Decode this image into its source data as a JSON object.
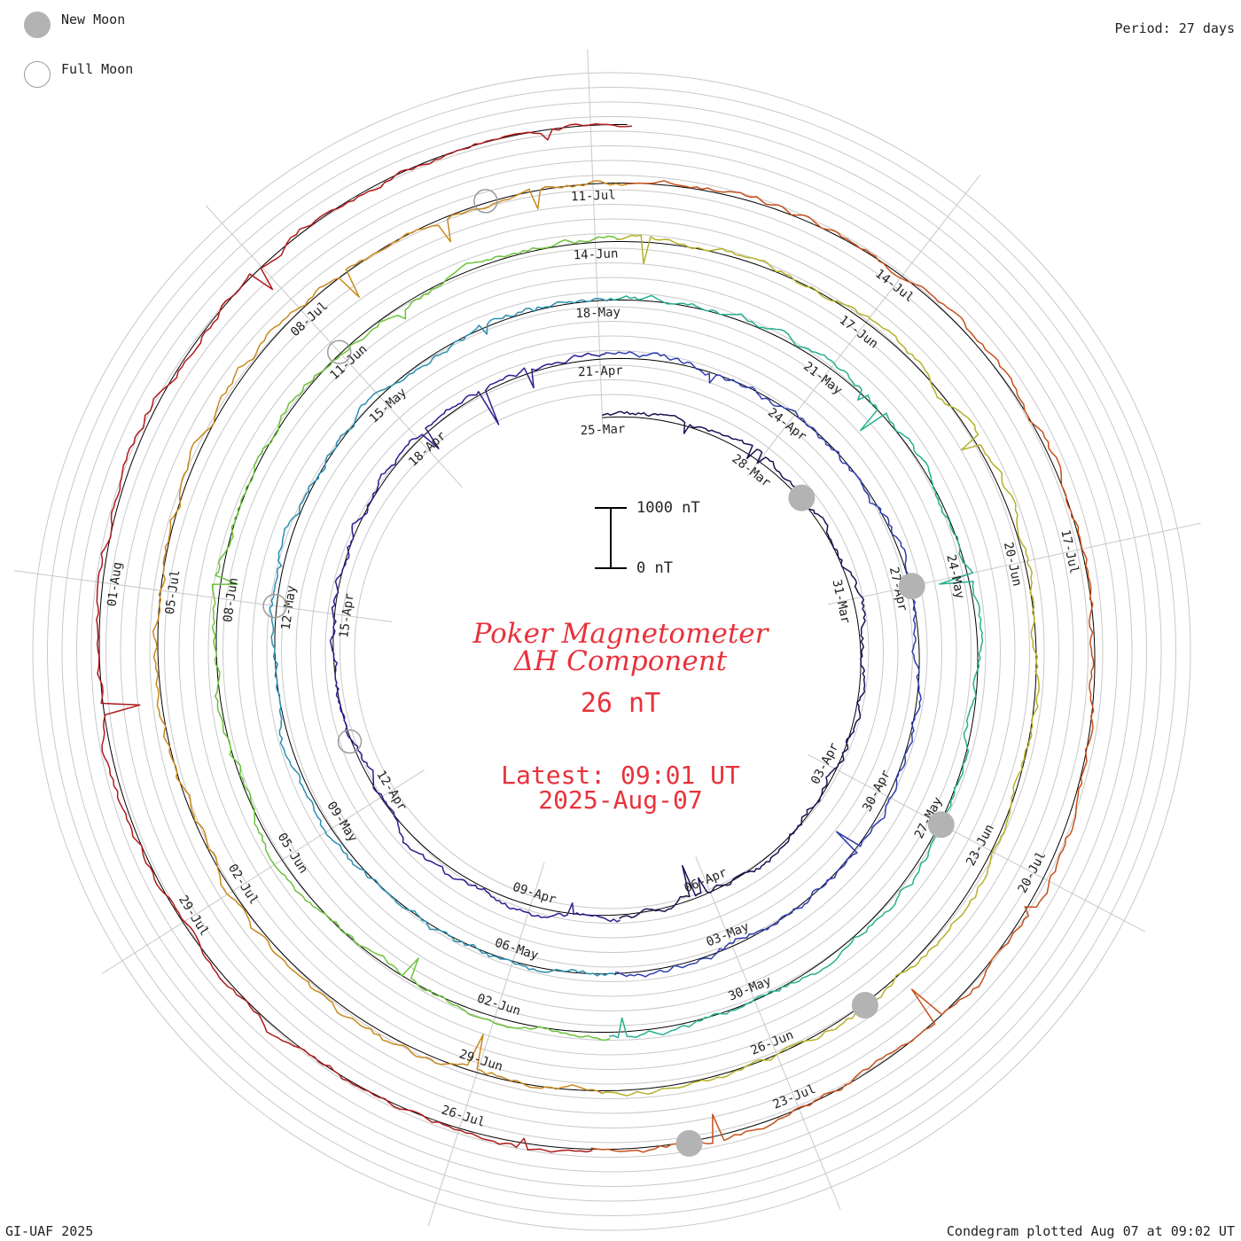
{
  "legend": {
    "new_moon_label": "New Moon",
    "full_moon_label": "Full Moon"
  },
  "period_label": "Period: 27 days",
  "footer": {
    "left": "GI-UAF 2025",
    "right": "Condegram plotted Aug 07 at 09:02 UT"
  },
  "title": {
    "line1": "Poker Magnetometer",
    "line2": "ΔH Component",
    "value": "26 nT",
    "latest_line1": "Latest: 09:01 UT",
    "latest_line2": "2025-Aug-07"
  },
  "scale_bar": {
    "top_label": "1000 nT",
    "bottom_label": "0 nT"
  },
  "colors": {
    "new_moon": "#b3b3b3",
    "full_moon_outline": "#9a9a9a",
    "title": "#e8323c",
    "grid": "#c8c8c8",
    "baseline": "#000000"
  },
  "chart_data": {
    "type": "line",
    "layout": "spiral condegram",
    "period_days": 27,
    "start_date": "2025-03-25",
    "end_date": "2025-08-07",
    "date_labels": [
      "25-Mar",
      "28-Mar",
      "31-Mar",
      "03-Apr",
      "06-Apr",
      "09-Apr",
      "12-Apr",
      "15-Apr",
      "18-Apr",
      "21-Apr",
      "24-Apr",
      "27-Apr",
      "30-Apr",
      "03-May",
      "06-May",
      "09-May",
      "12-May",
      "15-May",
      "18-May",
      "21-May",
      "24-May",
      "27-May",
      "30-May",
      "02-Jun",
      "05-Jun",
      "08-Jun",
      "11-Jun",
      "14-Jun",
      "17-Jun",
      "20-Jun",
      "23-Jun",
      "26-Jun",
      "29-Jun",
      "02-Jul",
      "05-Jul",
      "08-Jul",
      "11-Jul",
      "14-Jul",
      "17-Jul",
      "20-Jul",
      "23-Jul",
      "26-Jul",
      "29-Jul",
      "01-Aug"
    ],
    "series_colors": [
      "#1a1050",
      "#2a1f8f",
      "#2f3db0",
      "#2a8fb0",
      "#25b08e",
      "#6cc23a",
      "#b4b028",
      "#c8891c",
      "#c5501a",
      "#b01a1a"
    ],
    "new_moons": [
      "2025-03-29",
      "2025-04-27",
      "2025-05-27",
      "2025-06-25",
      "2025-07-24"
    ],
    "full_moons": [
      "2025-04-13",
      "2025-05-12",
      "2025-06-11",
      "2025-07-10"
    ]
  }
}
